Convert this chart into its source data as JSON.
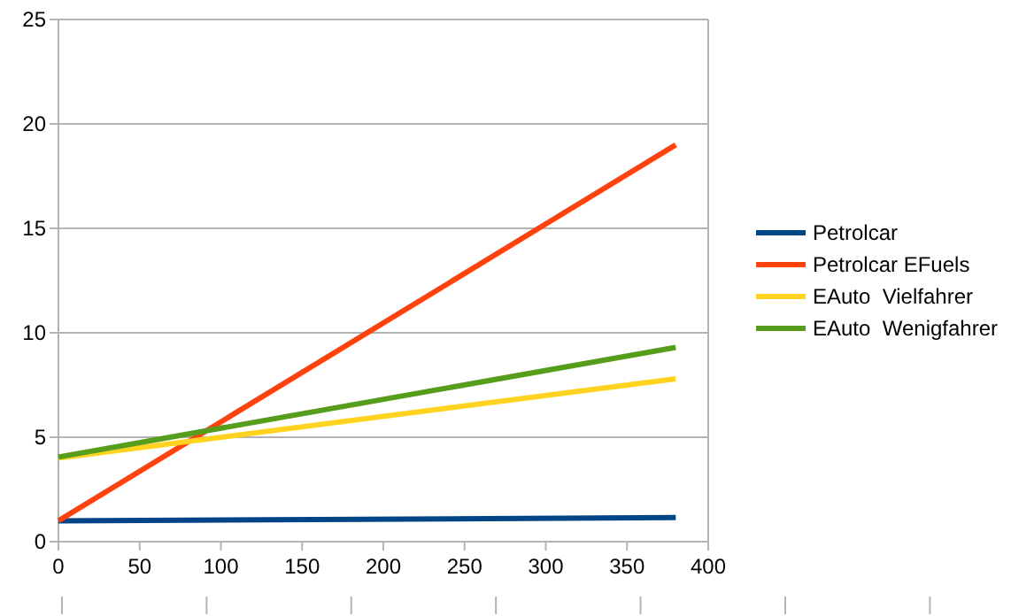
{
  "chart_data": {
    "type": "line",
    "x": [
      0,
      380
    ],
    "series": [
      {
        "name": "Petrolcar",
        "color": "#004586",
        "values": [
          1,
          1.15
        ]
      },
      {
        "name": "Petrolcar EFuels",
        "color": "#ff420e",
        "values": [
          1,
          19
        ]
      },
      {
        "name": "EAuto  Vielfahrer",
        "color": "#ffd320",
        "values": [
          4,
          7.8
        ]
      },
      {
        "name": "EAuto  Wenigfahrer",
        "color": "#579d1c",
        "values": [
          4.05,
          9.3
        ]
      }
    ],
    "xlim": [
      0,
      400
    ],
    "xticks": [
      0,
      50,
      100,
      150,
      200,
      250,
      300,
      350,
      400
    ],
    "ylim": [
      0,
      25
    ],
    "yticks": [
      0,
      5,
      10,
      15,
      20,
      25
    ],
    "grid": "y",
    "legend": "right",
    "marker": "none",
    "line_style": "solid"
  }
}
